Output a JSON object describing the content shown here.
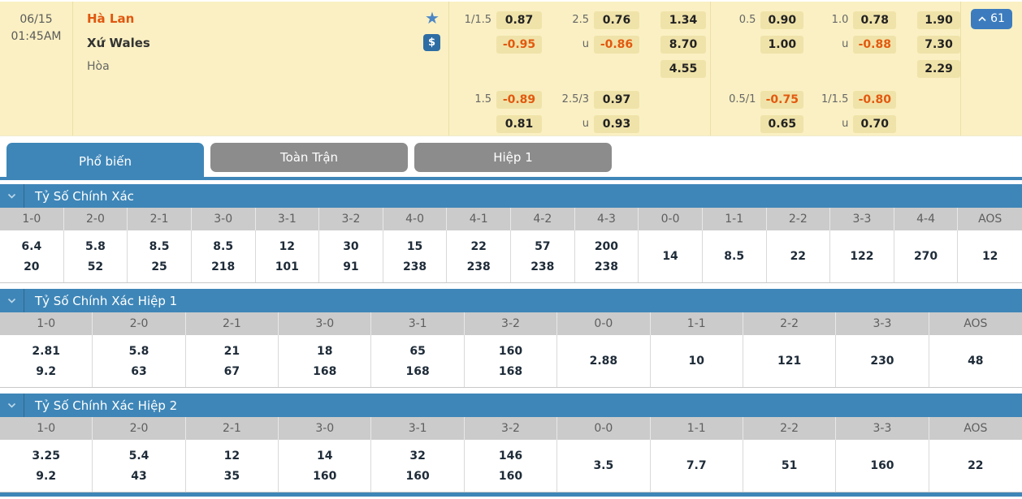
{
  "match": {
    "date": "06/15",
    "time": "01:45AM",
    "home_team": "Hà Lan",
    "away_team": "Xứ Wales",
    "draw_label": "Hòa",
    "markets_count": "61",
    "icons": {
      "favorite_star": "★",
      "cash_out_dollar": "$",
      "collapse_chevron_up": "chevron-up",
      "section_chevron_down": "chevron-down"
    },
    "colors": {
      "accent_blue": "#3E86B8",
      "button_blue": "#3C7CBE",
      "cash_blue": "#2E6DA4",
      "negative_orange": "#E2590F",
      "panel_yellow": "#FAF0C3",
      "chip_tan": "#F0E3A9",
      "inactive_tab_gray": "#8C8C8C",
      "header_row_gray": "#CBCBCB"
    }
  },
  "odds": {
    "groups": [
      {
        "rows": [
          [
            "1/1.5",
            "0.87",
            "2.5",
            "0.76",
            "1.34"
          ],
          [
            "",
            "-0.95",
            "u",
            "-0.86",
            "8.70"
          ],
          [
            "",
            "",
            "",
            "",
            "4.55"
          ],
          [
            "1.5",
            "-0.89",
            "2.5/3",
            "0.97",
            ""
          ],
          [
            "",
            "0.81",
            "u",
            "0.93",
            ""
          ]
        ]
      },
      {
        "rows": [
          [
            "0.5",
            "0.90",
            "1.0",
            "0.78",
            "1.90"
          ],
          [
            "",
            "1.00",
            "u",
            "-0.88",
            "7.30"
          ],
          [
            "",
            "",
            "",
            "",
            "2.29"
          ],
          [
            "0.5/1",
            "-0.75",
            "1/1.5",
            "-0.80",
            ""
          ],
          [
            "",
            "0.65",
            "u",
            "0.70",
            ""
          ]
        ]
      }
    ]
  },
  "tabs": [
    {
      "label": "Phổ biến",
      "active": true
    },
    {
      "label": "Toàn Trận",
      "active": false
    },
    {
      "label": "Hiệp 1",
      "active": false
    }
  ],
  "sections": [
    {
      "title": "Tỷ Số Chính Xác",
      "columns": [
        "1-0",
        "2-0",
        "2-1",
        "3-0",
        "3-1",
        "3-2",
        "4-0",
        "4-1",
        "4-2",
        "4-3",
        "0-0",
        "1-1",
        "2-2",
        "3-3",
        "4-4",
        "AOS"
      ],
      "values": [
        [
          "6.4",
          "20"
        ],
        [
          "5.8",
          "52"
        ],
        [
          "8.5",
          "25"
        ],
        [
          "8.5",
          "218"
        ],
        [
          "12",
          "101"
        ],
        [
          "30",
          "91"
        ],
        [
          "15",
          "238"
        ],
        [
          "22",
          "238"
        ],
        [
          "57",
          "238"
        ],
        [
          "200",
          "238"
        ],
        [
          "14"
        ],
        [
          "8.5"
        ],
        [
          "22"
        ],
        [
          "122"
        ],
        [
          "270"
        ],
        [
          "12"
        ]
      ]
    },
    {
      "title": "Tỷ Số Chính Xác Hiệp 1",
      "columns": [
        "1-0",
        "2-0",
        "2-1",
        "3-0",
        "3-1",
        "3-2",
        "0-0",
        "1-1",
        "2-2",
        "3-3",
        "AOS"
      ],
      "values": [
        [
          "2.81",
          "9.2"
        ],
        [
          "5.8",
          "63"
        ],
        [
          "21",
          "67"
        ],
        [
          "18",
          "168"
        ],
        [
          "65",
          "168"
        ],
        [
          "160",
          "168"
        ],
        [
          "2.88"
        ],
        [
          "10"
        ],
        [
          "121"
        ],
        [
          "230"
        ],
        [
          "48"
        ]
      ]
    },
    {
      "title": "Tỷ Số Chính Xác Hiệp 2",
      "columns": [
        "1-0",
        "2-0",
        "2-1",
        "3-0",
        "3-1",
        "3-2",
        "0-0",
        "1-1",
        "2-2",
        "3-3",
        "AOS"
      ],
      "values": [
        [
          "3.25",
          "9.2"
        ],
        [
          "5.4",
          "43"
        ],
        [
          "12",
          "35"
        ],
        [
          "14",
          "160"
        ],
        [
          "32",
          "160"
        ],
        [
          "146",
          "160"
        ],
        [
          "3.5"
        ],
        [
          "7.7"
        ],
        [
          "51"
        ],
        [
          "160"
        ],
        [
          "22"
        ]
      ]
    }
  ]
}
